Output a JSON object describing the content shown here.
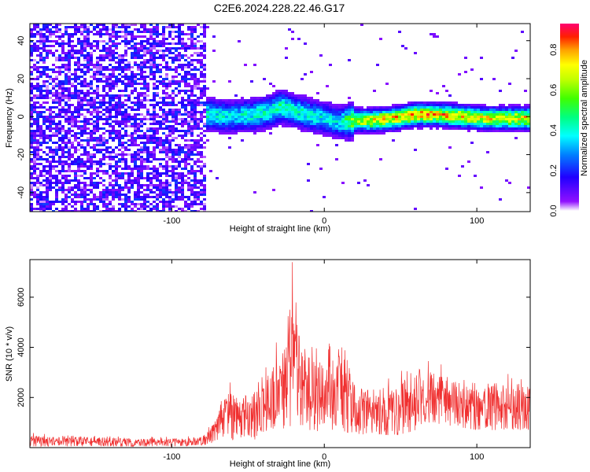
{
  "title": "C2E6.2024.228.22.46.G17",
  "colors": {
    "snr_line": "#f03030",
    "axis": "#000000",
    "colormap": [
      "#ffffff",
      "#8000ff",
      "#0000ff",
      "#00a0ff",
      "#00ffff",
      "#00ff80",
      "#00ff00",
      "#a0ff00",
      "#ffff00",
      "#ffa000",
      "#ff0000",
      "#ff0080"
    ]
  },
  "chart_data": [
    {
      "type": "heatmap",
      "title": "",
      "xlabel": "Height of straight line (km)",
      "ylabel": "Frequency (Hz)",
      "xlim": [
        -193,
        135
      ],
      "ylim": [
        -50,
        49
      ],
      "xticks": [
        -100,
        0,
        100
      ],
      "yticks": [
        -40,
        -20,
        0,
        20,
        40
      ],
      "colorbar": {
        "label": "Normalized spectral amplitude",
        "range": [
          0,
          0.93
        ],
        "ticks": [
          "0.0",
          "0.2",
          "0.4",
          "0.6",
          "0.8"
        ]
      },
      "noise_region_x": [
        -193,
        -78
      ],
      "signal_track": {
        "x": [
          -78,
          -60,
          -45,
          -35,
          -28,
          -20,
          -10,
          0,
          10,
          20,
          30,
          45,
          60,
          75,
          90,
          105,
          120,
          135
        ],
        "freq_hz": [
          1,
          0,
          1,
          3,
          5,
          3,
          1,
          -1,
          -3,
          -2,
          -2,
          -1,
          1,
          1,
          0,
          -1,
          -1,
          -1
        ],
        "peak_amplitude": [
          0.45,
          0.4,
          0.45,
          0.45,
          0.5,
          0.45,
          0.45,
          0.4,
          0.4,
          0.7,
          0.75,
          0.8,
          0.85,
          0.8,
          0.8,
          0.75,
          0.75,
          0.8
        ]
      }
    },
    {
      "type": "line",
      "title": "",
      "xlabel": "Height of straight line (km)",
      "ylabel": "SNR (10 * v/v)",
      "xlim": [
        -193,
        135
      ],
      "ylim": [
        0,
        7500
      ],
      "xticks": [
        -100,
        0,
        100
      ],
      "yticks": [
        2000,
        4000,
        6000
      ],
      "envelope": {
        "x": [
          -193,
          -170,
          -150,
          -120,
          -100,
          -80,
          -75,
          -70,
          -65,
          -60,
          -55,
          -50,
          -45,
          -40,
          -35,
          -30,
          -25,
          -20,
          -15,
          -10,
          -5,
          0,
          5,
          10,
          15,
          20,
          25,
          30,
          40,
          50,
          60,
          65,
          70,
          80,
          90,
          100,
          110,
          120,
          135
        ],
        "upper": [
          600,
          500,
          500,
          450,
          450,
          500,
          900,
          1500,
          2500,
          2700,
          2300,
          2600,
          2500,
          3000,
          3800,
          4500,
          4800,
          7400,
          4800,
          5000,
          4600,
          3800,
          4500,
          5000,
          4500,
          3000,
          2800,
          3200,
          3000,
          3200,
          3500,
          3200,
          3600,
          3200,
          3000,
          2800,
          2900,
          3000,
          3000
        ],
        "lower": [
          50,
          50,
          50,
          50,
          50,
          80,
          150,
          300,
          400,
          300,
          400,
          500,
          300,
          600,
          700,
          700,
          800,
          600,
          900,
          700,
          600,
          900,
          700,
          700,
          600,
          600,
          500,
          600,
          500,
          500,
          700,
          1000,
          1000,
          900,
          800,
          700,
          700,
          700,
          700
        ]
      }
    }
  ]
}
